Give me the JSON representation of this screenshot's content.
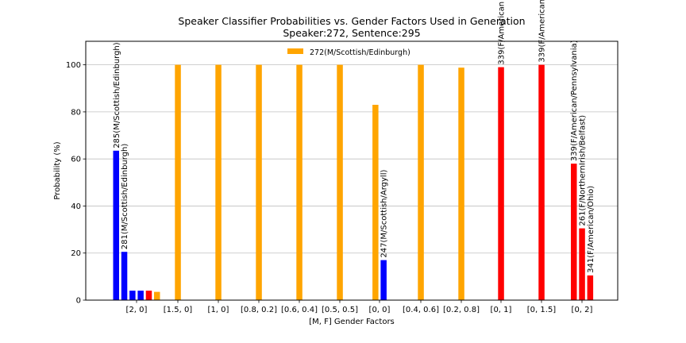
{
  "chart_data": {
    "type": "bar",
    "title": "Speaker Classifier Probabilities vs. Gender Factors Used in Generation",
    "subtitle": "Speaker:272, Sentence:295",
    "xlabel": "[M, F] Gender Factors",
    "ylabel": "Probability (%)",
    "ylim": [
      0,
      110
    ],
    "yticks": [
      "0",
      "20",
      "40",
      "60",
      "80",
      "100"
    ],
    "ytick_values": [
      0,
      20,
      40,
      60,
      80,
      100
    ],
    "grid": "y",
    "legend": {
      "entry": "272(M/Scottish/Edinburgh)",
      "color": "#ffa500",
      "placement": "top-center"
    },
    "categories": [
      "[2, 0]",
      "[1.5, 0]",
      "[1, 0]",
      "[0.8, 0.2]",
      "[0.6, 0.4]",
      "[0.5, 0.5]",
      "[0, 0]",
      "[0.4, 0.6]",
      "[0.2, 0.8]",
      "[0, 1]",
      "[0, 1.5]",
      "[0, 2]"
    ],
    "groups": [
      {
        "category": "[2, 0]",
        "bars": [
          {
            "value": 63.5,
            "color": "#0000ff",
            "label": "285(M/Scottish/Edinburgh)"
          },
          {
            "value": 20.5,
            "color": "#0000ff",
            "label": "281(M/Scottish/Edinburgh)"
          },
          {
            "value": 4.0,
            "color": "#0000ff",
            "label": ""
          },
          {
            "value": 4.0,
            "color": "#0000ff",
            "label": ""
          },
          {
            "value": 4.0,
            "color": "#ff0000",
            "label": ""
          },
          {
            "value": 3.5,
            "color": "#ffa500",
            "label": ""
          }
        ]
      },
      {
        "category": "[1.5, 0]",
        "bars": [
          {
            "value": 100,
            "color": "#ffa500",
            "label": ""
          }
        ]
      },
      {
        "category": "[1, 0]",
        "bars": [
          {
            "value": 100,
            "color": "#ffa500",
            "label": ""
          }
        ]
      },
      {
        "category": "[0.8, 0.2]",
        "bars": [
          {
            "value": 100,
            "color": "#ffa500",
            "label": ""
          }
        ]
      },
      {
        "category": "[0.6, 0.4]",
        "bars": [
          {
            "value": 100,
            "color": "#ffa500",
            "label": ""
          }
        ]
      },
      {
        "category": "[0.5, 0.5]",
        "bars": [
          {
            "value": 100,
            "color": "#ffa500",
            "label": ""
          }
        ]
      },
      {
        "category": "[0, 0]",
        "bars": [
          {
            "value": 83,
            "color": "#ffa500",
            "label": ""
          },
          {
            "value": 17,
            "color": "#0000ff",
            "label": "247(M/Scottish/Argyll)"
          }
        ]
      },
      {
        "category": "[0.4, 0.6]",
        "bars": [
          {
            "value": 100,
            "color": "#ffa500",
            "label": ""
          }
        ]
      },
      {
        "category": "[0.2, 0.8]",
        "bars": [
          {
            "value": 98.8,
            "color": "#ffa500",
            "label": ""
          }
        ]
      },
      {
        "category": "[0, 1]",
        "bars": [
          {
            "value": 99,
            "color": "#ff0000",
            "label": "339(F/American"
          }
        ]
      },
      {
        "category": "[0, 1.5]",
        "bars": [
          {
            "value": 100,
            "color": "#ff0000",
            "label": "339(F/American"
          }
        ]
      },
      {
        "category": "[0, 2]",
        "bars": [
          {
            "value": 58,
            "color": "#ff0000",
            "label": "339(F/American/Pennsylvania)"
          },
          {
            "value": 30.5,
            "color": "#ff0000",
            "label": "261(F/NorthernIrish/Belfast)"
          },
          {
            "value": 10.5,
            "color": "#ff0000",
            "label": "341(F/American/Ohio)"
          }
        ]
      }
    ]
  }
}
